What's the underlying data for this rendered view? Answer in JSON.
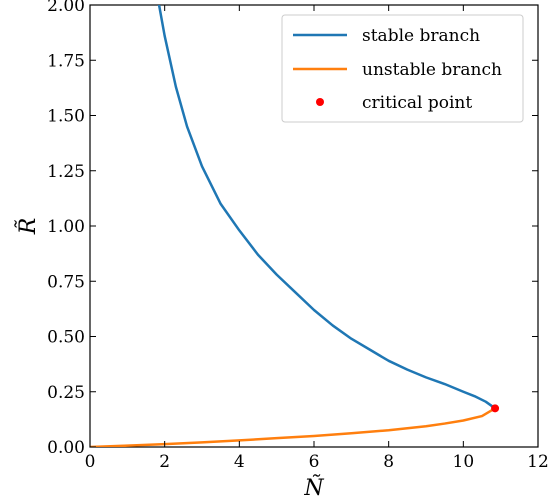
{
  "chart_data": {
    "type": "line",
    "title": "",
    "xlabel": "Ñ",
    "ylabel": "R̃",
    "xlim": [
      0,
      12
    ],
    "ylim": [
      0,
      2
    ],
    "x_ticks": [
      0,
      2,
      4,
      6,
      8,
      10,
      12
    ],
    "y_ticks": [
      0.0,
      0.25,
      0.5,
      0.75,
      1.0,
      1.25,
      1.5,
      1.75,
      2.0
    ],
    "x_tick_labels": [
      "0",
      "2",
      "4",
      "6",
      "8",
      "10",
      "12"
    ],
    "y_tick_labels": [
      "0.00",
      "0.25",
      "0.50",
      "0.75",
      "1.00",
      "1.25",
      "1.50",
      "1.75",
      "2.00"
    ],
    "grid": false,
    "legend_position": "top-right",
    "series": [
      {
        "name": "stable branch",
        "color": "#1f77b4",
        "x": [
          1.85,
          2.0,
          2.3,
          2.6,
          3.0,
          3.5,
          4.0,
          4.5,
          5.0,
          5.5,
          6.0,
          6.5,
          7.0,
          7.5,
          8.0,
          8.5,
          9.0,
          9.5,
          10.0,
          10.3,
          10.6,
          10.85
        ],
        "y": [
          2.0,
          1.86,
          1.63,
          1.45,
          1.27,
          1.1,
          0.98,
          0.87,
          0.78,
          0.7,
          0.62,
          0.55,
          0.49,
          0.44,
          0.39,
          0.35,
          0.315,
          0.285,
          0.25,
          0.23,
          0.205,
          0.175
        ]
      },
      {
        "name": "unstable branch",
        "color": "#ff7f0e",
        "x": [
          0,
          1,
          2,
          3,
          4,
          5,
          6,
          7,
          8,
          9,
          9.5,
          10,
          10.5,
          10.85
        ],
        "y": [
          0,
          0.006,
          0.013,
          0.021,
          0.03,
          0.04,
          0.05,
          0.062,
          0.076,
          0.094,
          0.106,
          0.12,
          0.14,
          0.175
        ]
      }
    ],
    "points": [
      {
        "name": "critical point",
        "color": "#ff0000",
        "x": 10.85,
        "y": 0.175
      }
    ]
  }
}
